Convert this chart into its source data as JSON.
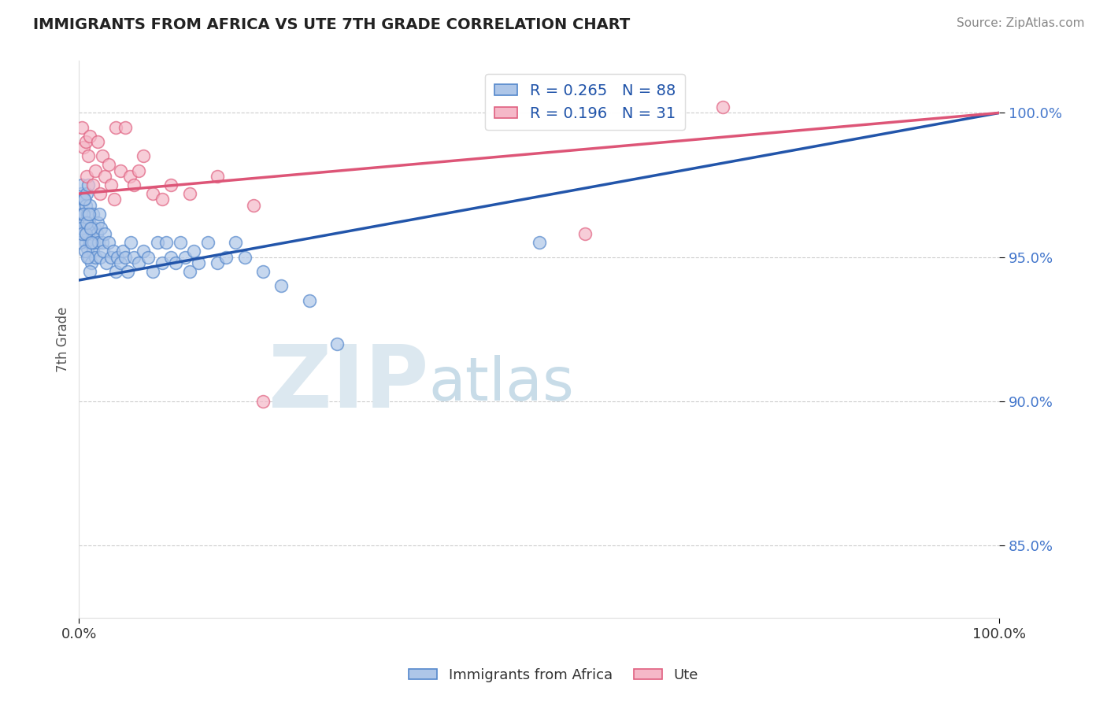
{
  "title": "IMMIGRANTS FROM AFRICA VS UTE 7TH GRADE CORRELATION CHART",
  "source_text": "Source: ZipAtlas.com",
  "ylabel": "7th Grade",
  "legend_blue_label": "Immigrants from Africa",
  "legend_pink_label": "Ute",
  "blue_R": 0.265,
  "blue_N": 88,
  "pink_R": 0.196,
  "pink_N": 31,
  "xmin": 0.0,
  "xmax": 100.0,
  "ymin": 82.5,
  "ymax": 101.8,
  "yticks": [
    85.0,
    90.0,
    95.0,
    100.0
  ],
  "xticks": [
    0.0,
    100.0
  ],
  "xtick_labels": [
    "0.0%",
    "100.0%"
  ],
  "ytick_labels": [
    "85.0%",
    "90.0%",
    "95.0%",
    "100.0%"
  ],
  "grid_color": "#cccccc",
  "blue_color": "#aec6e8",
  "blue_edge_color": "#5588cc",
  "pink_color": "#f5b8c8",
  "pink_edge_color": "#e06080",
  "blue_line_color": "#2255aa",
  "pink_line_color": "#dd5577",
  "watermark_zip": "ZIP",
  "watermark_atlas": "atlas",
  "watermark_color": "#dce8f0",
  "blue_line_x0": 0.0,
  "blue_line_y0": 94.2,
  "blue_line_x1": 100.0,
  "blue_line_y1": 100.0,
  "pink_line_x0": 0.0,
  "pink_line_y0": 97.2,
  "pink_line_x1": 100.0,
  "pink_line_y1": 100.0,
  "blue_scatter_x": [
    0.2,
    0.2,
    0.3,
    0.3,
    0.4,
    0.4,
    0.5,
    0.5,
    0.6,
    0.6,
    0.7,
    0.7,
    0.8,
    0.8,
    0.9,
    0.9,
    1.0,
    1.0,
    1.1,
    1.1,
    1.2,
    1.2,
    1.3,
    1.3,
    1.4,
    1.5,
    1.5,
    1.6,
    1.7,
    1.8,
    1.9,
    2.0,
    2.1,
    2.2,
    2.3,
    2.4,
    2.5,
    2.6,
    2.8,
    3.0,
    3.2,
    3.5,
    3.7,
    4.0,
    4.2,
    4.5,
    4.8,
    5.0,
    5.3,
    5.6,
    6.0,
    6.5,
    7.0,
    7.5,
    8.0,
    8.5,
    9.0,
    9.5,
    10.0,
    10.5,
    11.0,
    11.5,
    12.0,
    12.5,
    13.0,
    14.0,
    15.0,
    16.0,
    17.0,
    18.0,
    20.0,
    22.0,
    25.0,
    28.0,
    0.15,
    0.25,
    0.35,
    0.45,
    0.55,
    0.65,
    0.75,
    0.85,
    0.95,
    1.05,
    1.15,
    1.25,
    1.35,
    50.0
  ],
  "blue_scatter_y": [
    97.2,
    96.8,
    96.5,
    97.5,
    96.0,
    97.0,
    95.8,
    96.5,
    97.0,
    96.2,
    95.5,
    96.8,
    96.0,
    97.2,
    95.3,
    96.5,
    97.5,
    95.8,
    96.2,
    95.0,
    96.8,
    95.5,
    96.0,
    94.8,
    95.8,
    96.5,
    95.2,
    95.5,
    96.0,
    95.0,
    95.8,
    96.2,
    95.5,
    96.5,
    95.0,
    96.0,
    95.5,
    95.2,
    95.8,
    94.8,
    95.5,
    95.0,
    95.2,
    94.5,
    95.0,
    94.8,
    95.2,
    95.0,
    94.5,
    95.5,
    95.0,
    94.8,
    95.2,
    95.0,
    94.5,
    95.5,
    94.8,
    95.5,
    95.0,
    94.8,
    95.5,
    95.0,
    94.5,
    95.2,
    94.8,
    95.5,
    94.8,
    95.0,
    95.5,
    95.0,
    94.5,
    94.0,
    93.5,
    92.0,
    95.5,
    96.0,
    95.8,
    96.5,
    97.0,
    95.2,
    95.8,
    96.2,
    95.0,
    96.5,
    94.5,
    96.0,
    95.5,
    95.5
  ],
  "pink_scatter_x": [
    0.3,
    0.5,
    0.7,
    0.8,
    1.0,
    1.2,
    1.5,
    1.8,
    2.0,
    2.3,
    2.5,
    2.8,
    3.2,
    3.5,
    3.8,
    4.0,
    4.5,
    5.0,
    5.5,
    6.0,
    6.5,
    7.0,
    8.0,
    9.0,
    10.0,
    12.0,
    15.0,
    19.0,
    20.0,
    55.0,
    70.0
  ],
  "pink_scatter_y": [
    99.5,
    98.8,
    99.0,
    97.8,
    98.5,
    99.2,
    97.5,
    98.0,
    99.0,
    97.2,
    98.5,
    97.8,
    98.2,
    97.5,
    97.0,
    99.5,
    98.0,
    99.5,
    97.8,
    97.5,
    98.0,
    98.5,
    97.2,
    97.0,
    97.5,
    97.2,
    97.8,
    96.8,
    90.0,
    95.8,
    100.2
  ]
}
